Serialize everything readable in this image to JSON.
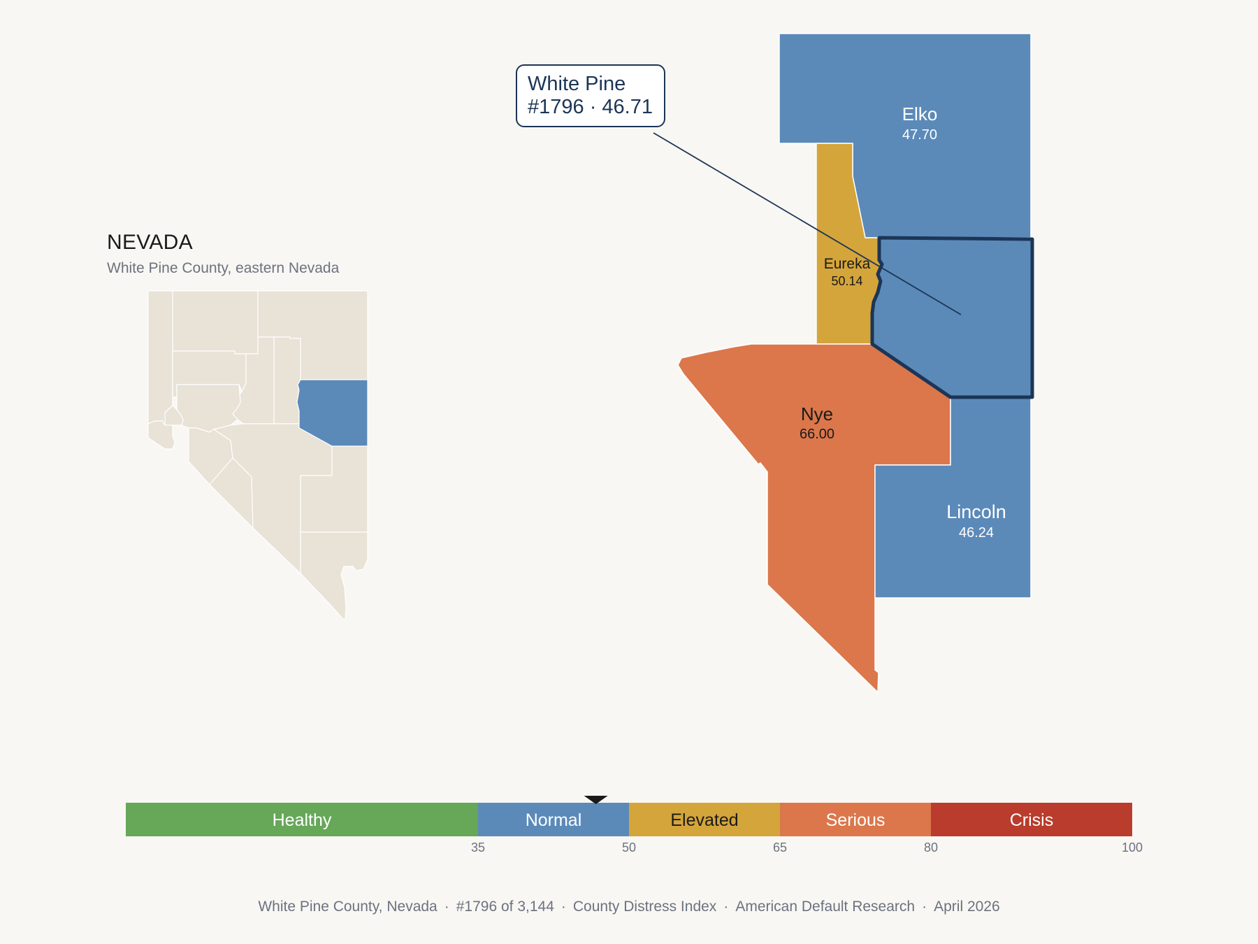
{
  "inset": {
    "state_name": "NEVADA",
    "subtitle": "White Pine County, eastern Nevada",
    "base_color": "#e8e2d7",
    "highlight_color": "#5b8ab9"
  },
  "callout": {
    "name": "White Pine",
    "detail": "#1796 · 46.71"
  },
  "counties": [
    {
      "id": "elko",
      "name": "Elko",
      "value": "47.70",
      "color": "#5b8ab9",
      "label_color": "#ffffff"
    },
    {
      "id": "eureka",
      "name": "Eureka",
      "value": "50.14",
      "color": "#d4a53b",
      "label_color": "#1a1a1a"
    },
    {
      "id": "nye",
      "name": "Nye",
      "value": "66.00",
      "color": "#db774b",
      "label_color": "#1a1a1a"
    },
    {
      "id": "lincoln",
      "name": "Lincoln",
      "value": "46.24",
      "color": "#5b8ab9",
      "label_color": "#ffffff"
    },
    {
      "id": "white-pine",
      "name": "White Pine",
      "value": "46.71",
      "color": "#5b8ab9",
      "outline": "#1c3557"
    }
  ],
  "scale": {
    "min": 0,
    "max": 100,
    "marker_value": 46.71,
    "bands": [
      {
        "label": "Healthy",
        "from": 0,
        "to": 35,
        "color": "#66a758",
        "text_color": "#ffffff"
      },
      {
        "label": "Normal",
        "from": 35,
        "to": 50,
        "color": "#5b8ab9",
        "text_color": "#ffffff"
      },
      {
        "label": "Elevated",
        "from": 50,
        "to": 65,
        "color": "#d4a53b",
        "text_color": "#1a1a1a"
      },
      {
        "label": "Serious",
        "from": 65,
        "to": 80,
        "color": "#db774b",
        "text_color": "#ffffff"
      },
      {
        "label": "Crisis",
        "from": 80,
        "to": 100,
        "color": "#b93c2c",
        "text_color": "#ffffff"
      }
    ],
    "ticks": [
      "35",
      "50",
      "65",
      "80",
      "100"
    ]
  },
  "footer": {
    "county": "White Pine County, Nevada",
    "rank": "#1796 of 3,144",
    "index": "County Distress Index",
    "org": "American Default Research",
    "date": "April 2026"
  }
}
